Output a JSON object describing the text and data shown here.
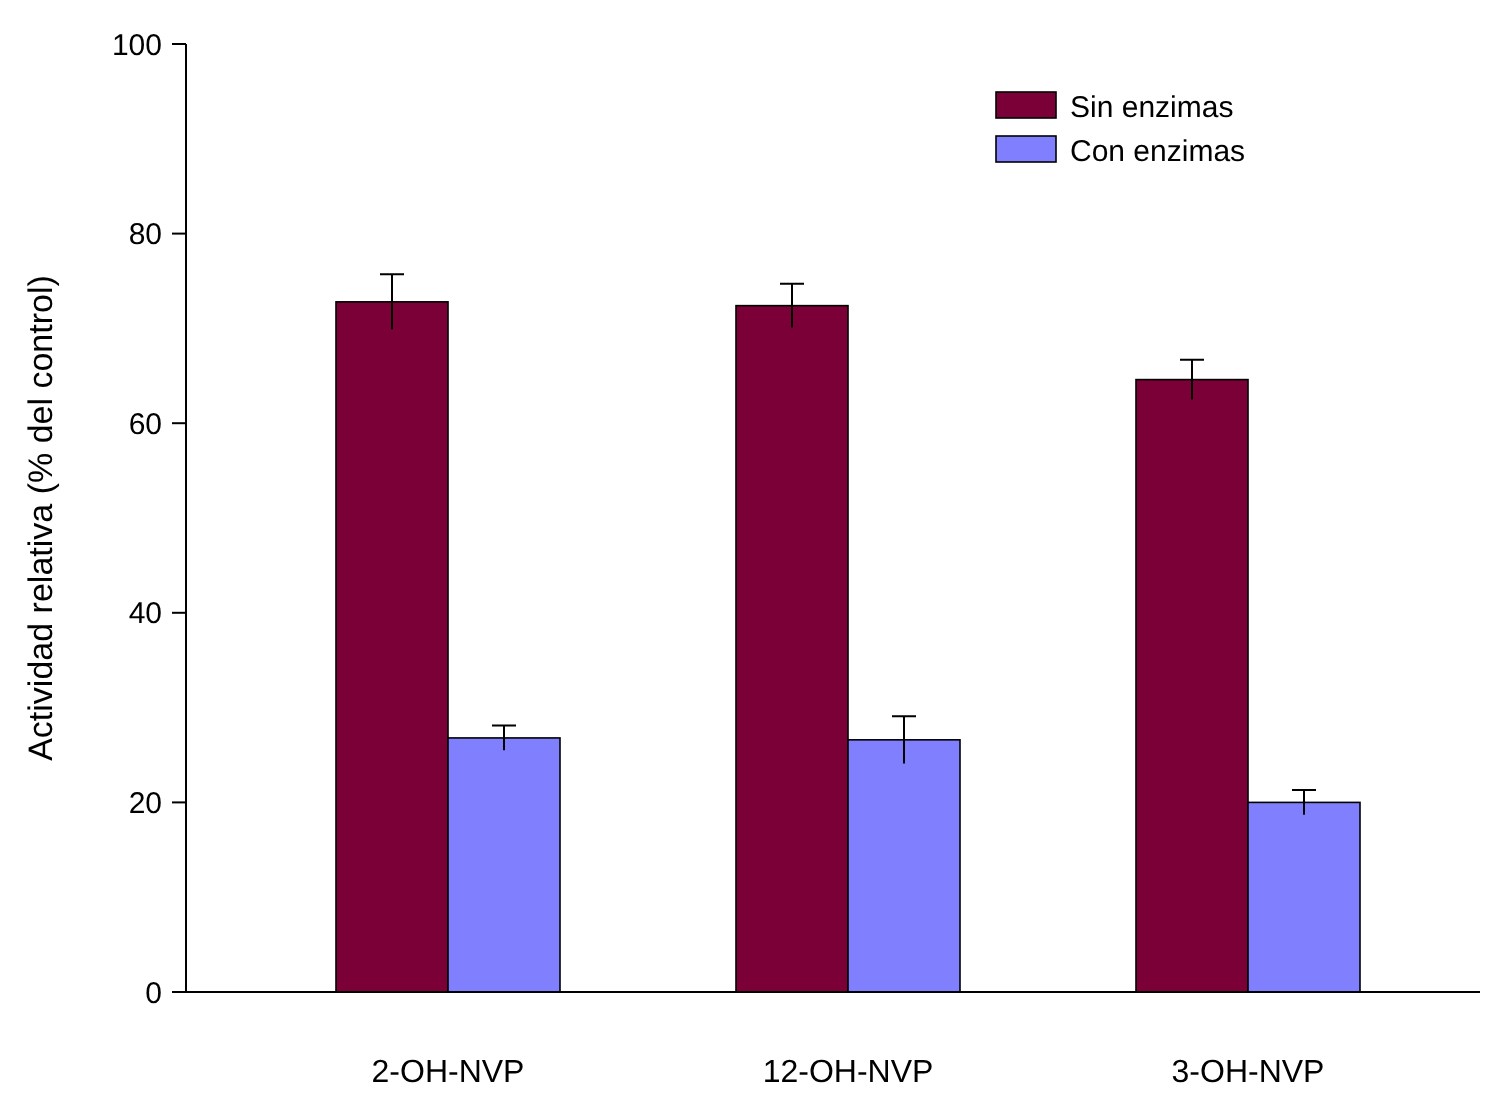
{
  "chart_data": {
    "type": "bar",
    "ylabel": "Actividad relativa (% del control)",
    "categories": [
      "2-OH-NVP",
      "12-OH-NVP",
      "3-OH-NVP"
    ],
    "series": [
      {
        "name": "Sin enzimas",
        "color": "#7b0038",
        "values": [
          72.8,
          72.4,
          64.6
        ],
        "errors": [
          2.9,
          2.3,
          2.1
        ]
      },
      {
        "name": "Con enzimas",
        "color": "#8080ff",
        "values": [
          26.8,
          26.6,
          20.0
        ],
        "errors": [
          1.3,
          2.5,
          1.3
        ]
      }
    ],
    "ylim": [
      0,
      100
    ],
    "yticks": [
      0,
      20,
      40,
      60,
      80,
      100
    ],
    "legend": "top right"
  }
}
